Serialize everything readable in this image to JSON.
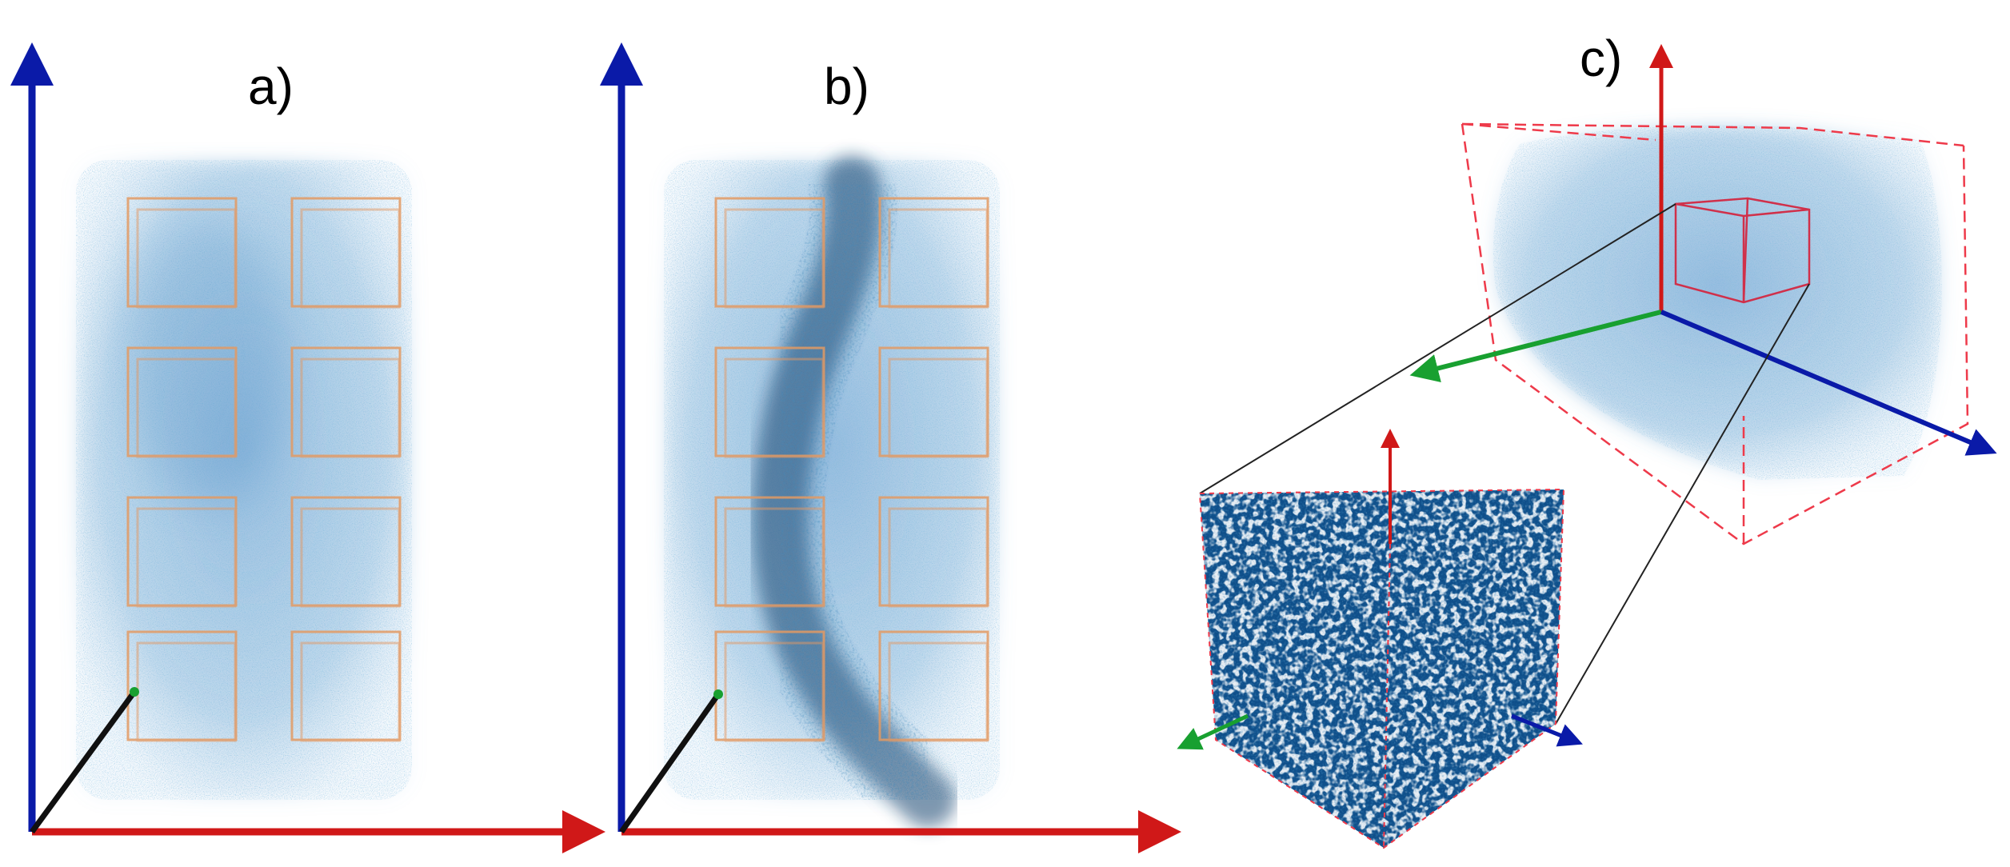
{
  "panels": [
    {
      "id": "a",
      "label": "a)"
    },
    {
      "id": "b",
      "label": "b)"
    },
    {
      "id": "c",
      "label": "c)"
    }
  ],
  "colors": {
    "axis_vertical": "#0a1aa8",
    "axis_horizontal": "#d01818",
    "axis_depth": "#101010",
    "axis_green": "#18a030",
    "volume_blue": "#2f78b8",
    "volume_dark": "#12446f",
    "roi_box": "#e39a62",
    "bounding_box": "#ee3a4a",
    "cube_fill": "#0f4f8a",
    "zoom_line": "#222222"
  },
  "roi_grid": {
    "columns": 2,
    "rows": 4
  },
  "icons": [
    "axis-arrow",
    "subvolume-cube"
  ]
}
